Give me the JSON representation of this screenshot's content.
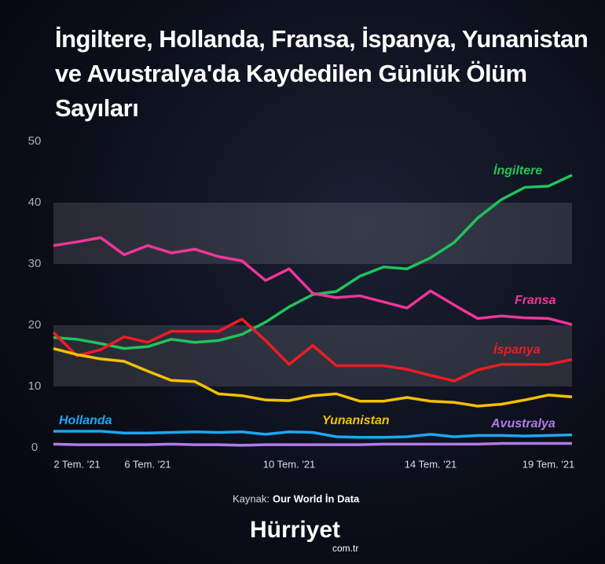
{
  "chart_data": {
    "type": "line",
    "title": "İngiltere, Hollanda, Fransa, İspanya, Yunanistan ve Avustralya'da Kaydedilen Günlük Ölüm Sayıları",
    "categories": [
      null,
      "2 Tem. '21",
      null,
      null,
      "6 Tem. '21",
      null,
      null,
      null,
      null,
      null,
      "10 Tem. '21",
      null,
      null,
      null,
      null,
      null,
      "14 Tem. '21",
      null,
      null,
      null,
      null,
      "19 Tem. '21",
      null
    ],
    "ylim": [
      0,
      50
    ],
    "yticks": [
      0,
      10,
      20,
      30,
      40,
      50
    ],
    "series": [
      {
        "name": "İngiltere",
        "color": "#1fc45a",
        "values": [
          18,
          17.7,
          17,
          16.2,
          16.5,
          17.7,
          17.2,
          17.5,
          18.5,
          20.5,
          23,
          25,
          25.5,
          28,
          29.5,
          29.2,
          31,
          33.5,
          37.5,
          40.5,
          42.5,
          42.7,
          44.5
        ]
      },
      {
        "name": "Fransa",
        "color": "#f0359a",
        "values": [
          33,
          33.6,
          34.3,
          31.5,
          33,
          31.8,
          32.4,
          31.2,
          30.5,
          27.3,
          29.2,
          25.2,
          24.5,
          24.8,
          23.8,
          22.8,
          25.6,
          23.3,
          21.1,
          21.5,
          21.2,
          21.1,
          20.1
        ]
      },
      {
        "name": "İspanya",
        "color": "#ee1c25",
        "values": [
          18.8,
          15,
          16,
          18.1,
          17.2,
          19,
          19,
          19,
          21,
          17.5,
          13.6,
          16.7,
          13.4,
          13.4,
          13.4,
          12.8,
          11.8,
          10.9,
          12.7,
          13.6,
          13.6,
          13.6,
          14.4
        ]
      },
      {
        "name": "Yunanistan",
        "color": "#f6c000",
        "values": [
          16.2,
          15.2,
          14.5,
          14.1,
          12.5,
          11,
          10.8,
          8.8,
          8.5,
          7.8,
          7.7,
          8.5,
          8.8,
          7.6,
          7.6,
          8.2,
          7.6,
          7.4,
          6.8,
          7.1,
          7.8,
          8.6,
          8.3
        ]
      },
      {
        "name": "Hollanda",
        "color": "#1ba7f0",
        "values": [
          2.7,
          2.7,
          2.7,
          2.4,
          2.4,
          2.5,
          2.6,
          2.5,
          2.6,
          2.2,
          2.6,
          2.5,
          1.8,
          1.7,
          1.7,
          1.8,
          2.2,
          1.8,
          2,
          2,
          1.9,
          2,
          2.1
        ]
      },
      {
        "name": "Avustralya",
        "color": "#b07ce8",
        "values": [
          0.6,
          0.5,
          0.5,
          0.5,
          0.5,
          0.6,
          0.5,
          0.5,
          0.4,
          0.5,
          0.5,
          0.5,
          0.5,
          0.5,
          0.6,
          0.6,
          0.6,
          0.6,
          0.6,
          0.7,
          0.7,
          0.7,
          0.7
        ]
      }
    ],
    "source_label": "Kaynak:",
    "source": "Our World İn Data",
    "brand": "Hürriyet",
    "brand_suffix": "com.tr"
  }
}
